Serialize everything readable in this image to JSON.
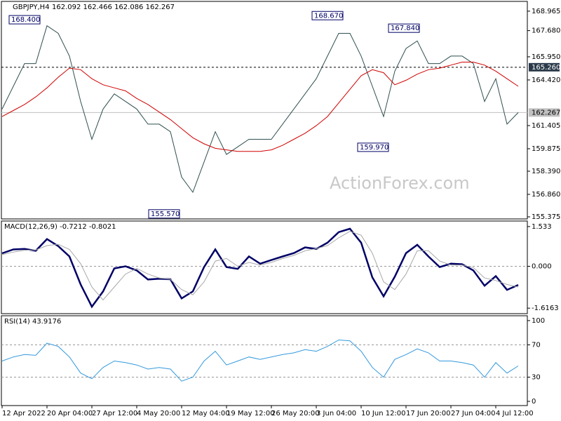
{
  "chart_data": [
    {
      "type": "line",
      "title": "GBPJPY,H4",
      "subtitle": "162.092 162.466 162.086 162.267",
      "watermark": "ActionForex.com",
      "categories": [
        "12 Apr 2022",
        null,
        null,
        null,
        "20 Apr 04:00",
        null,
        null,
        null,
        "27 Apr 12:00",
        null,
        null,
        null,
        "4 May 20:00",
        null,
        null,
        null,
        "12 May 04:00",
        null,
        null,
        null,
        "19 May 12:00",
        null,
        null,
        null,
        "26 May 20:00",
        null,
        null,
        null,
        "3 Jun 04:00",
        null,
        null,
        null,
        "10 Jun 12:00",
        null,
        null,
        null,
        "17 Jun 20:00",
        null,
        null,
        null,
        "27 Jun 04:00",
        null,
        null,
        null,
        "4 Jul 12:00",
        null,
        null
      ],
      "series": [
        {
          "color": "#2f4f4f",
          "values": [
            162.5,
            164,
            165.5,
            165.5,
            168,
            167.5,
            166,
            163,
            160.5,
            162.5,
            163.5,
            163,
            162.5,
            161.5,
            161.5,
            161,
            158,
            157,
            159,
            161,
            159.5,
            160,
            160.5,
            160.5,
            160.5,
            161.5,
            162.5,
            163.5,
            164.5,
            166,
            167.5,
            167.5,
            166,
            164,
            162,
            165,
            166.5,
            167,
            165.5,
            165.5,
            166,
            166,
            165.5,
            163,
            164.5,
            161.5,
            162.267
          ]
        },
        {
          "color": "#d00000",
          "values": [
            162,
            162.4,
            162.8,
            163.3,
            163.9,
            164.6,
            165.2,
            165.1,
            164.5,
            164.1,
            163.9,
            163.7,
            163.2,
            162.8,
            162.3,
            161.8,
            161.2,
            160.6,
            160.2,
            159.9,
            159.8,
            159.7,
            159.7,
            159.7,
            159.8,
            160.1,
            160.5,
            160.9,
            161.4,
            162.0,
            162.9,
            163.8,
            164.7,
            165.1,
            164.9,
            164.1,
            164.4,
            164.8,
            165.1,
            165.2,
            165.4,
            165.6,
            165.6,
            165.4,
            165.0,
            164.5,
            164.0
          ]
        }
      ],
      "ylim": [
        155.237,
        169.61
      ],
      "yticks": [
        168.965,
        {
          "value": 167.68,
          "label": "167.680"
        },
        {
          "value": 165.95,
          "label": "165.950"
        },
        {
          "value": 164.42,
          "label": "164.420"
        },
        161.405,
        159.875,
        {
          "value": 158.39,
          "label": "158.390"
        },
        {
          "value": 156.86,
          "label": "156.860"
        },
        155.375
      ],
      "levels": [
        {
          "value": 165.26,
          "label": "165.260"
        }
      ],
      "last": {
        "value": 162.267,
        "label": "162.267"
      },
      "annotations": [
        {
          "value": 168.4,
          "label": "168.400"
        },
        {
          "value": 168.67,
          "label": "168.670"
        },
        {
          "value": 167.84,
          "label": "167.840"
        },
        {
          "value": 159.97,
          "label": "159.970"
        },
        {
          "value": 155.57,
          "label": "155.570"
        }
      ]
    },
    {
      "type": "line",
      "title": "MACD(12,26,9) -0.7212 -0.8021",
      "series": [
        {
          "color": "#000066",
          "values": [
            0.5,
            0.65,
            0.67,
            0.6,
            1.05,
            0.78,
            0.38,
            -0.7,
            -1.56,
            -0.97,
            -0.08,
            0,
            -0.16,
            -0.51,
            -0.48,
            -0.5,
            -1.24,
            -0.97,
            -0.03,
            0.65,
            -0.03,
            -0.1,
            0.38,
            0.1,
            0.24,
            0.38,
            0.51,
            0.73,
            0.67,
            0.91,
            1.32,
            1.45,
            0.91,
            -0.43,
            -1.16,
            -0.4,
            0.51,
            0.83,
            0.38,
            -0.03,
            0.1,
            0.08,
            -0.16,
            -0.75,
            -0.38,
            -0.91,
            -0.7212
          ]
        },
        {
          "color": "#a8a8a8",
          "values": [
            0.45,
            0.55,
            0.62,
            0.63,
            0.8,
            0.85,
            0.65,
            0.1,
            -0.8,
            -1.3,
            -0.8,
            -0.3,
            -0.08,
            -0.3,
            -0.45,
            -0.5,
            -0.9,
            -1.1,
            -0.6,
            0.2,
            0.3,
            0,
            0.15,
            0.05,
            0.15,
            0.3,
            0.42,
            0.6,
            0.68,
            0.8,
            1.1,
            1.35,
            1.2,
            0.5,
            -0.6,
            -0.9,
            -0.3,
            0.6,
            0.6,
            0.2,
            0.05,
            0.05,
            -0.05,
            -0.45,
            -0.55,
            -0.7,
            -0.8021
          ]
        }
      ],
      "ylim": [
        -1.828,
        1.747
      ],
      "yticks": [
        1.533,
        {
          "value": 0,
          "label": "0.000"
        },
        -1.6163
      ],
      "dashed_levels": [
        0
      ]
    },
    {
      "type": "line",
      "title": "RSI(14) 43.9176",
      "series": [
        {
          "color": "#3399dd",
          "values": [
            50,
            55,
            58,
            57,
            72,
            68,
            55,
            35,
            28,
            42,
            50,
            48,
            45,
            40,
            42,
            40,
            25,
            30,
            50,
            62,
            45,
            50,
            55,
            52,
            55,
            58,
            60,
            64,
            62,
            68,
            76,
            75,
            62,
            42,
            30,
            52,
            58,
            65,
            60,
            50,
            50,
            48,
            45,
            30,
            48,
            35,
            43.9176
          ]
        }
      ],
      "ylim": [
        -5.2,
        106
      ],
      "yticks": [
        100,
        70,
        30,
        0
      ],
      "dashed_levels": [
        70,
        30
      ]
    }
  ]
}
